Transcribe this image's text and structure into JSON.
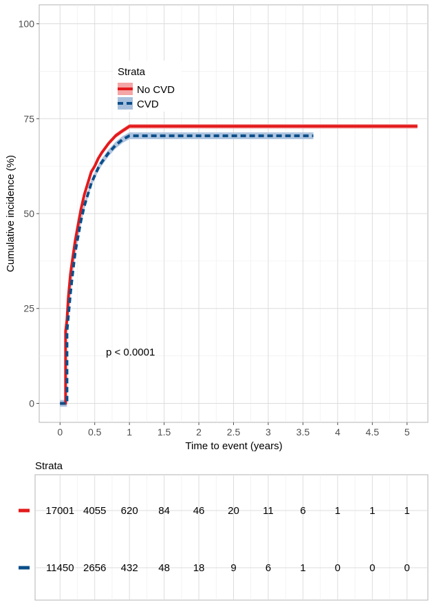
{
  "chart_data": [
    {
      "type": "line",
      "xlabel": "Time to event (years)",
      "ylabel": "Cumulative incidence (%)",
      "xlim": [
        -0.3,
        5.3
      ],
      "ylim": [
        -5,
        105
      ],
      "xticks": [
        0,
        0.5,
        1,
        1.5,
        2,
        2.5,
        3,
        3.5,
        4,
        4.5,
        5
      ],
      "xtick_labels": [
        "0",
        "0.5",
        "1",
        "1.5",
        "2",
        "2.5",
        "3",
        "3.5",
        "4",
        "4.5",
        "5"
      ],
      "yticks": [
        0,
        25,
        50,
        75,
        100
      ],
      "ytick_labels": [
        "0",
        "25",
        "50",
        "75",
        "100"
      ],
      "grid": true,
      "legend": {
        "title": "Strata",
        "position": "top-center",
        "entries": [
          "No CVD",
          "CVD"
        ]
      },
      "annotation": "p < 0.0001",
      "series": [
        {
          "name": "No CVD",
          "color": "#e41a1c",
          "band_color": "#f4a5a5",
          "style": "solid",
          "x": [
            0,
            0.08,
            0.08,
            0.1,
            0.12,
            0.15,
            0.18,
            0.22,
            0.26,
            0.3,
            0.35,
            0.4,
            0.45,
            0.5,
            0.55,
            0.6,
            0.7,
            0.8,
            0.9,
            1.0,
            1.2,
            2.0,
            3.0,
            4.0,
            5.15
          ],
          "y": [
            0,
            0,
            19,
            22,
            28,
            34,
            38,
            43,
            47,
            51,
            55,
            58,
            61,
            62.5,
            64.5,
            66,
            68.5,
            70.5,
            71.8,
            73,
            73,
            73,
            73,
            73,
            73
          ],
          "ci": 0.6
        },
        {
          "name": "CVD",
          "color": "#0b4f8a",
          "band_color": "#a7bfdc",
          "style": "dashed",
          "x": [
            0,
            0.1,
            0.1,
            0.12,
            0.15,
            0.18,
            0.22,
            0.26,
            0.3,
            0.35,
            0.4,
            0.45,
            0.5,
            0.55,
            0.6,
            0.7,
            0.8,
            0.9,
            1.0,
            1.2,
            2.0,
            3.0,
            3.65
          ],
          "y": [
            0,
            0,
            19,
            23,
            29,
            34,
            40,
            44,
            48,
            52,
            55,
            58,
            60,
            62,
            63.5,
            66,
            68,
            69.5,
            70.5,
            70.5,
            70.5,
            70.5,
            70.5
          ],
          "ci": 0.9
        }
      ]
    },
    {
      "type": "table",
      "title": "Strata",
      "x": [
        0,
        0.5,
        1,
        1.5,
        2,
        2.5,
        3,
        3.5,
        4,
        4.5,
        5
      ],
      "rows": [
        {
          "name": "No CVD",
          "color": "#e41a1c",
          "values": [
            "17001",
            "4055",
            "620",
            "84",
            "46",
            "20",
            "11",
            "6",
            "1",
            "1",
            "1"
          ]
        },
        {
          "name": "CVD",
          "color": "#0b4f8a",
          "values": [
            "11450",
            "2656",
            "432",
            "48",
            "18",
            "9",
            "6",
            "1",
            "0",
            "0",
            "0"
          ]
        }
      ]
    }
  ]
}
